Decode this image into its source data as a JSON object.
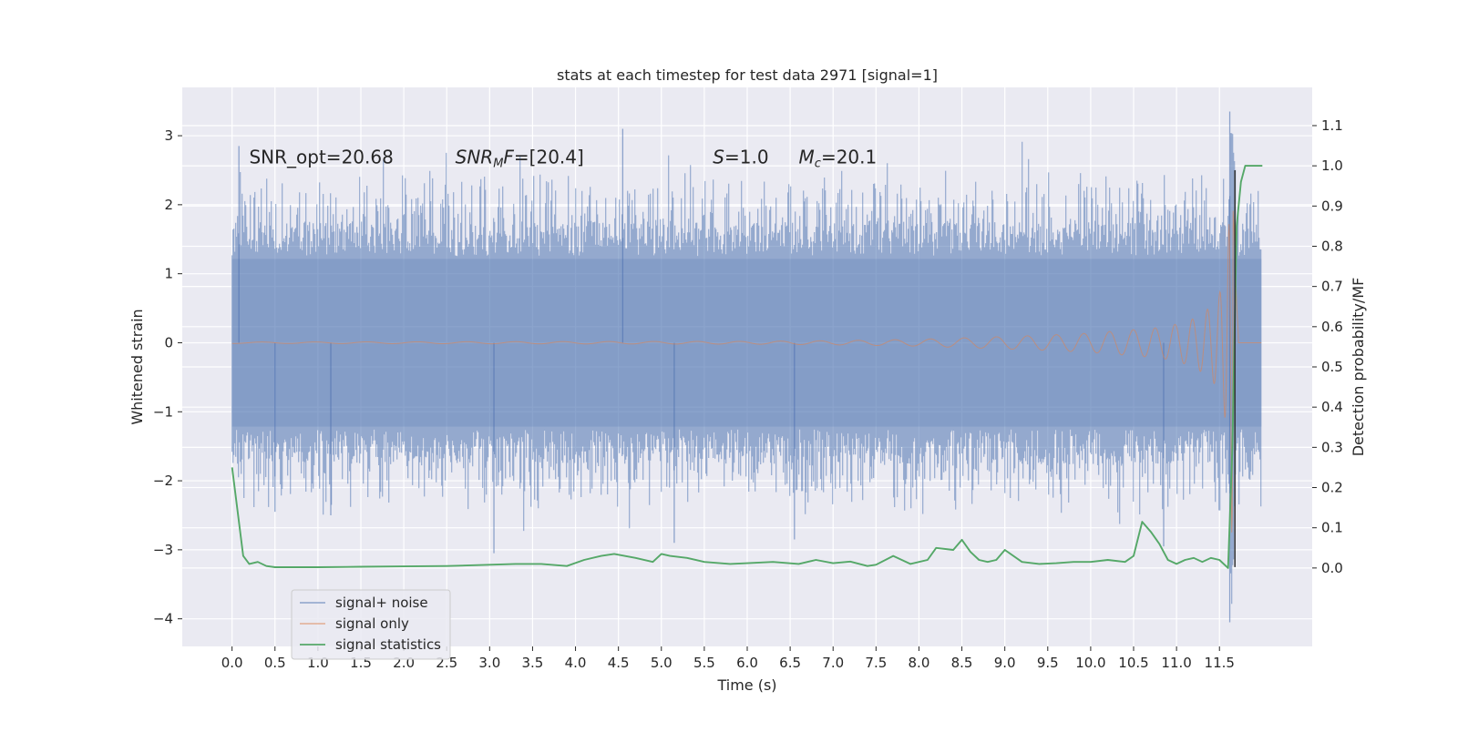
{
  "chart_data": {
    "type": "line",
    "title": "stats at each timestep for test data 2971 [signal=1]",
    "xlabel": "Time (s)",
    "ylabel": "Whitened strain",
    "ylabel_right": "Detection probability/MF",
    "xlim": [
      -0.58,
      12.58
    ],
    "ylim": [
      -4.4,
      3.7
    ],
    "ylim_right": [
      -0.195,
      1.195
    ],
    "x_ticks": [
      0.0,
      0.5,
      1.0,
      1.5,
      2.0,
      2.5,
      3.0,
      3.5,
      4.0,
      4.5,
      5.0,
      5.5,
      6.0,
      6.5,
      7.0,
      7.5,
      8.0,
      8.5,
      9.0,
      9.5,
      10.0,
      10.5,
      11.0,
      11.5
    ],
    "x_tick_labels": [
      "0.0",
      "0.5",
      "1.0",
      "1.5",
      "2.0",
      "2.5",
      "3.0",
      "3.5",
      "4.0",
      "4.5",
      "5.0",
      "5.5",
      "6.0",
      "6.5",
      "7.0",
      "7.5",
      "8.0",
      "8.5",
      "9.0",
      "9.5",
      "10.0",
      "10.5",
      "11.0",
      "11.5"
    ],
    "y_ticks": [
      -4,
      -3,
      -2,
      -1,
      0,
      1,
      2,
      3
    ],
    "y_tick_labels": [
      "−4",
      "−3",
      "−2",
      "−1",
      "0",
      "1",
      "2",
      "3"
    ],
    "y_ticks_right": [
      0.0,
      0.1,
      0.2,
      0.3,
      0.4,
      0.5,
      0.6,
      0.7,
      0.8,
      0.9,
      1.0,
      1.1
    ],
    "y_tick_labels_right": [
      "0.0",
      "0.1",
      "0.2",
      "0.3",
      "0.4",
      "0.5",
      "0.6",
      "0.7",
      "0.8",
      "0.9",
      "1.0",
      "1.1"
    ],
    "grid": true,
    "legend_position": "lower-left",
    "annotations": [
      {
        "label": "SNR_opt=20.68",
        "x": 0.2,
        "y": 2.6
      },
      {
        "label": "SNR",
        "sub": "M",
        "suffix": "F=[20.4]",
        "x": 2.6,
        "y": 2.6
      },
      {
        "label": "S",
        "suffix": "=1.0",
        "x": 5.6,
        "y": 2.6
      },
      {
        "label": "M",
        "sub": "c",
        "suffix": "=20.1",
        "x": 6.6,
        "y": 2.6
      }
    ],
    "series": [
      {
        "name": "signal+ noise",
        "color": "#4c72b0",
        "alpha": 0.5,
        "x_range": [
          0.0,
          11.99
        ],
        "approx_typical_amplitude": 1.35,
        "extremes": [
          {
            "x": 0.08,
            "y": 2.85
          },
          {
            "x": 4.55,
            "y": 3.1
          },
          {
            "x": 11.62,
            "y": 3.35
          },
          {
            "x": 3.05,
            "y": -3.05
          },
          {
            "x": 5.15,
            "y": -2.9
          },
          {
            "x": 11.62,
            "y": -4.05
          },
          {
            "x": 0.5,
            "y": -2.45
          },
          {
            "x": 1.15,
            "y": -2.5
          },
          {
            "x": 6.55,
            "y": -2.85
          },
          {
            "x": 10.85,
            "y": -2.95
          }
        ]
      },
      {
        "name": "signal only",
        "color": "#dd8452",
        "alpha": 0.5,
        "x": [
          0.0,
          6.0,
          7.0,
          8.0,
          8.5,
          9.0,
          9.5,
          10.0,
          10.5,
          10.8,
          11.0,
          11.2,
          11.4,
          11.5,
          11.55,
          11.6,
          11.63,
          11.65,
          11.67,
          11.7,
          11.72,
          11.74,
          11.8,
          11.99
        ],
        "envelope": [
          0.01,
          0.02,
          0.03,
          0.05,
          0.07,
          0.09,
          0.11,
          0.14,
          0.19,
          0.22,
          0.27,
          0.35,
          0.52,
          0.72,
          0.95,
          1.5,
          2.2,
          3.1,
          2.4,
          0.8,
          0.15,
          0.03,
          0.0,
          0.0
        ]
      },
      {
        "name": "signal statistics",
        "color": "#55a868",
        "axis": "right",
        "x": [
          0.0,
          0.13,
          0.2,
          0.3,
          0.4,
          0.5,
          1.0,
          1.5,
          2.0,
          2.5,
          3.0,
          3.3,
          3.6,
          3.9,
          4.1,
          4.3,
          4.45,
          4.7,
          4.9,
          5.0,
          5.1,
          5.3,
          5.5,
          5.8,
          6.0,
          6.3,
          6.6,
          6.8,
          7.0,
          7.2,
          7.4,
          7.5,
          7.7,
          7.9,
          8.1,
          8.2,
          8.4,
          8.5,
          8.6,
          8.7,
          8.8,
          8.9,
          9.0,
          9.2,
          9.4,
          9.6,
          9.8,
          10.0,
          10.2,
          10.4,
          10.5,
          10.6,
          10.7,
          10.8,
          10.9,
          11.0,
          11.1,
          11.2,
          11.3,
          11.4,
          11.5,
          11.6,
          11.65,
          11.7,
          11.75,
          11.8,
          11.85,
          12.0
        ],
        "values": [
          0.25,
          0.03,
          0.01,
          0.015,
          0.005,
          0.002,
          0.002,
          0.003,
          0.004,
          0.005,
          0.008,
          0.01,
          0.01,
          0.005,
          0.02,
          0.03,
          0.035,
          0.025,
          0.015,
          0.035,
          0.03,
          0.025,
          0.015,
          0.01,
          0.012,
          0.015,
          0.01,
          0.02,
          0.012,
          0.016,
          0.005,
          0.008,
          0.03,
          0.01,
          0.02,
          0.05,
          0.045,
          0.07,
          0.04,
          0.02,
          0.015,
          0.02,
          0.045,
          0.015,
          0.01,
          0.012,
          0.015,
          0.015,
          0.02,
          0.015,
          0.03,
          0.115,
          0.09,
          0.06,
          0.02,
          0.01,
          0.02,
          0.025,
          0.015,
          0.025,
          0.02,
          0.0,
          0.3,
          0.85,
          0.96,
          1.0,
          1.0,
          1.0
        ]
      }
    ]
  }
}
